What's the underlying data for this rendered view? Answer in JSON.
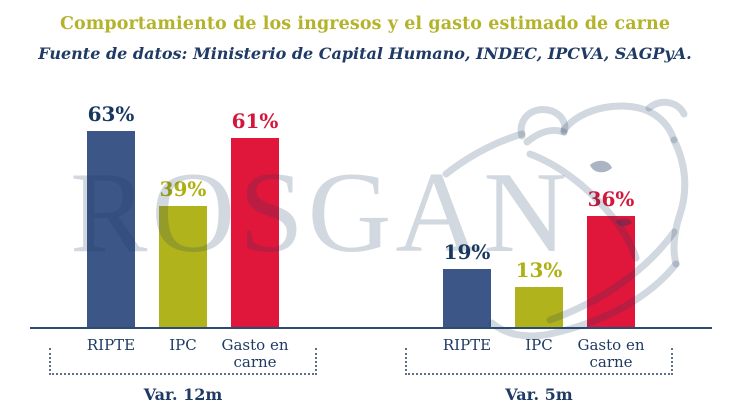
{
  "header": {
    "title": "Comportamiento de los ingresos y el gasto estimado de carne",
    "subtitle": "Fuente de datos: Ministerio de Capital Humano, INDEC, IPCVA, SAGPyA.",
    "title_color": "#b3b42b",
    "subtitle_color": "#1f3a64"
  },
  "watermark": {
    "text": "ROSGAN"
  },
  "chart_data": {
    "type": "bar",
    "title": "Comportamiento de los ingresos y el gasto estimado de carne",
    "subtitle": "Fuente de datos: Ministerio de Capital Humano, INDEC, IPCVA, SAGPyA.",
    "unit_suffix": "%",
    "categories": [
      "RIPTE",
      "IPC",
      "Gasto en carne"
    ],
    "groups": [
      {
        "label": "Var. 12m",
        "values": [
          63,
          39,
          61
        ]
      },
      {
        "label": "Var. 5m",
        "values": [
          19,
          13,
          36
        ]
      }
    ],
    "bar_colors": [
      "#3b5687",
      "#b1b31c",
      "#e0163b"
    ],
    "value_label_colors": [
      "#17375f",
      "#aeb011",
      "#d3173c"
    ],
    "category_label_color": "#1f3a64",
    "axis_color": "#2d4a70",
    "ylim": [
      0,
      70
    ],
    "grid": false,
    "legend": false,
    "watermark": "ROSGAN",
    "decoration": "bull-head-outline"
  }
}
